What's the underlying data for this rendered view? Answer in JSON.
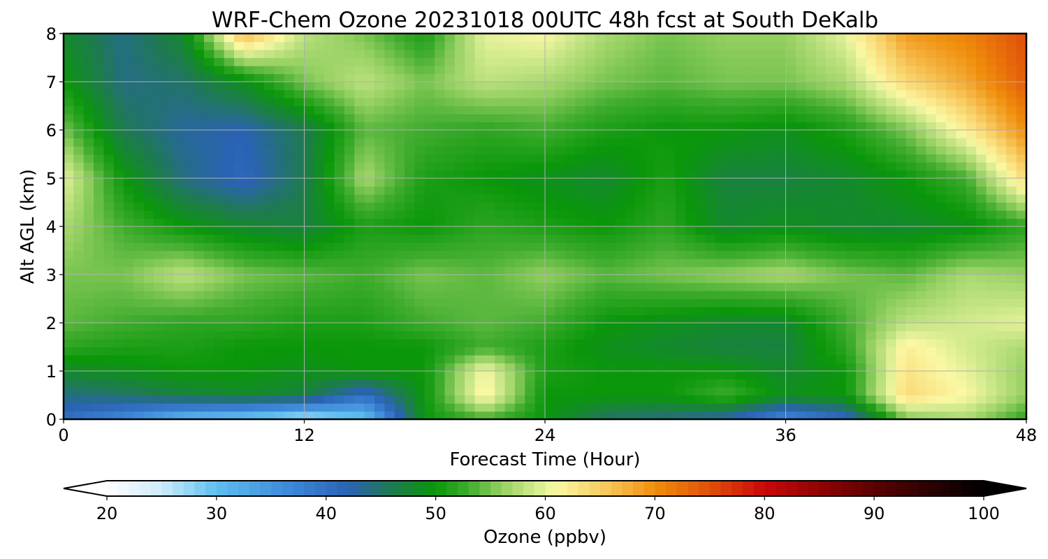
{
  "chart_data": {
    "type": "heatmap",
    "title": "WRF-Chem Ozone  20231018 00UTC 48h fcst at South DeKalb",
    "xlabel": "Forecast Time (Hour)",
    "ylabel": "Alt AGL (km)",
    "xlim": [
      0,
      48
    ],
    "ylim": [
      0,
      8
    ],
    "xticks": [
      0,
      12,
      24,
      36,
      48
    ],
    "yticks": [
      0,
      1,
      2,
      3,
      4,
      5,
      6,
      7,
      8
    ],
    "grid": true,
    "x": [
      0,
      3,
      6,
      9,
      12,
      15,
      18,
      21,
      24,
      27,
      30,
      33,
      36,
      39,
      42,
      45,
      48
    ],
    "y": [
      0,
      0.5,
      1,
      1.5,
      2,
      3,
      4,
      5,
      6,
      7,
      8
    ],
    "values": [
      [
        40,
        36,
        30,
        28,
        25,
        29,
        50,
        53,
        50,
        45,
        44,
        42,
        36,
        40,
        55,
        57,
        52
      ],
      [
        44,
        45,
        47,
        48,
        47,
        40,
        50,
        62,
        50,
        50,
        50,
        53,
        49,
        50,
        64,
        61,
        56
      ],
      [
        48,
        49,
        50,
        50,
        49,
        50,
        50,
        61,
        51,
        50,
        50,
        50,
        48,
        50,
        63,
        60,
        56
      ],
      [
        52,
        51,
        51,
        50,
        50,
        50,
        50,
        53,
        51,
        49,
        48,
        47,
        47,
        52,
        62,
        59,
        57
      ],
      [
        54,
        53,
        52,
        52,
        51,
        51,
        53,
        54,
        53,
        50,
        49,
        48,
        48,
        53,
        58,
        59,
        60
      ],
      [
        55,
        55,
        58,
        55,
        54,
        53,
        55,
        54,
        56,
        54,
        55,
        56,
        57,
        55,
        54,
        57,
        56
      ],
      [
        57,
        53,
        50,
        48,
        47,
        51,
        50,
        52,
        51,
        50,
        52,
        48,
        49,
        48,
        48,
        49,
        52
      ],
      [
        60,
        50,
        44,
        41,
        46,
        57,
        51,
        50,
        49,
        48,
        51,
        47,
        47,
        48,
        50,
        53,
        64
      ],
      [
        55,
        46,
        43,
        42,
        46,
        54,
        53,
        52,
        53,
        51,
        50,
        50,
        49,
        51,
        55,
        62,
        70
      ],
      [
        50,
        44,
        45,
        49,
        55,
        58,
        55,
        58,
        57,
        55,
        54,
        55,
        55,
        57,
        64,
        68,
        74
      ],
      [
        48,
        44,
        48,
        67,
        58,
        55,
        51,
        60,
        61,
        57,
        55,
        56,
        56,
        60,
        69,
        71,
        75
      ]
    ],
    "colorbar": {
      "label": "Ozone  (ppbv)",
      "min": 20,
      "max": 100,
      "ticks": [
        20,
        30,
        40,
        50,
        60,
        70,
        80,
        90,
        100
      ],
      "extend": "both",
      "colormap_stops": [
        {
          "v": 20,
          "c": "#ffffff"
        },
        {
          "v": 25,
          "c": "#cdebfb"
        },
        {
          "v": 30,
          "c": "#5ebef0"
        },
        {
          "v": 37,
          "c": "#3c85d6"
        },
        {
          "v": 42,
          "c": "#2a62b3"
        },
        {
          "v": 46,
          "c": "#1e7a50"
        },
        {
          "v": 50,
          "c": "#0a970a"
        },
        {
          "v": 53,
          "c": "#3fac2e"
        },
        {
          "v": 56,
          "c": "#95d062"
        },
        {
          "v": 59,
          "c": "#d2ea8e"
        },
        {
          "v": 61,
          "c": "#fbf8a4"
        },
        {
          "v": 65,
          "c": "#f8cf66"
        },
        {
          "v": 70,
          "c": "#f08e0c"
        },
        {
          "v": 75,
          "c": "#e0500a"
        },
        {
          "v": 80,
          "c": "#c80808"
        },
        {
          "v": 85,
          "c": "#900303"
        },
        {
          "v": 92,
          "c": "#470202"
        },
        {
          "v": 100,
          "c": "#000000"
        }
      ]
    }
  }
}
